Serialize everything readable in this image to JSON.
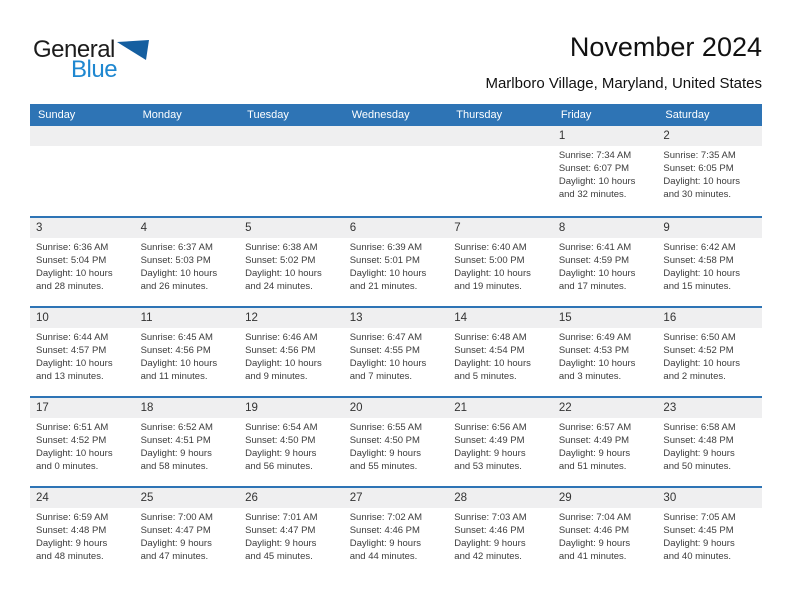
{
  "logo": {
    "line1": "General",
    "line2": "Blue"
  },
  "title": "November 2024",
  "subtitle": "Marlboro Village, Maryland, United States",
  "colors": {
    "header_blue": "#2E74B5",
    "row_border_blue": "#2E74B5",
    "number_band_gray": "#EFEFF0",
    "logo_text_blue": "#1E87D0",
    "logo_triangle_blue": "#155FA0"
  },
  "calendar": {
    "weekdays": [
      "Sunday",
      "Monday",
      "Tuesday",
      "Wednesday",
      "Thursday",
      "Friday",
      "Saturday"
    ],
    "weeks": [
      [
        null,
        null,
        null,
        null,
        null,
        {
          "day": "1",
          "sunrise": "Sunrise: 7:34 AM",
          "sunset": "Sunset: 6:07 PM",
          "daylight1": "Daylight: 10 hours",
          "daylight2": "and 32 minutes."
        },
        {
          "day": "2",
          "sunrise": "Sunrise: 7:35 AM",
          "sunset": "Sunset: 6:05 PM",
          "daylight1": "Daylight: 10 hours",
          "daylight2": "and 30 minutes."
        }
      ],
      [
        {
          "day": "3",
          "sunrise": "Sunrise: 6:36 AM",
          "sunset": "Sunset: 5:04 PM",
          "daylight1": "Daylight: 10 hours",
          "daylight2": "and 28 minutes."
        },
        {
          "day": "4",
          "sunrise": "Sunrise: 6:37 AM",
          "sunset": "Sunset: 5:03 PM",
          "daylight1": "Daylight: 10 hours",
          "daylight2": "and 26 minutes."
        },
        {
          "day": "5",
          "sunrise": "Sunrise: 6:38 AM",
          "sunset": "Sunset: 5:02 PM",
          "daylight1": "Daylight: 10 hours",
          "daylight2": "and 24 minutes."
        },
        {
          "day": "6",
          "sunrise": "Sunrise: 6:39 AM",
          "sunset": "Sunset: 5:01 PM",
          "daylight1": "Daylight: 10 hours",
          "daylight2": "and 21 minutes."
        },
        {
          "day": "7",
          "sunrise": "Sunrise: 6:40 AM",
          "sunset": "Sunset: 5:00 PM",
          "daylight1": "Daylight: 10 hours",
          "daylight2": "and 19 minutes."
        },
        {
          "day": "8",
          "sunrise": "Sunrise: 6:41 AM",
          "sunset": "Sunset: 4:59 PM",
          "daylight1": "Daylight: 10 hours",
          "daylight2": "and 17 minutes."
        },
        {
          "day": "9",
          "sunrise": "Sunrise: 6:42 AM",
          "sunset": "Sunset: 4:58 PM",
          "daylight1": "Daylight: 10 hours",
          "daylight2": "and 15 minutes."
        }
      ],
      [
        {
          "day": "10",
          "sunrise": "Sunrise: 6:44 AM",
          "sunset": "Sunset: 4:57 PM",
          "daylight1": "Daylight: 10 hours",
          "daylight2": "and 13 minutes."
        },
        {
          "day": "11",
          "sunrise": "Sunrise: 6:45 AM",
          "sunset": "Sunset: 4:56 PM",
          "daylight1": "Daylight: 10 hours",
          "daylight2": "and 11 minutes."
        },
        {
          "day": "12",
          "sunrise": "Sunrise: 6:46 AM",
          "sunset": "Sunset: 4:56 PM",
          "daylight1": "Daylight: 10 hours",
          "daylight2": "and 9 minutes."
        },
        {
          "day": "13",
          "sunrise": "Sunrise: 6:47 AM",
          "sunset": "Sunset: 4:55 PM",
          "daylight1": "Daylight: 10 hours",
          "daylight2": "and 7 minutes."
        },
        {
          "day": "14",
          "sunrise": "Sunrise: 6:48 AM",
          "sunset": "Sunset: 4:54 PM",
          "daylight1": "Daylight: 10 hours",
          "daylight2": "and 5 minutes."
        },
        {
          "day": "15",
          "sunrise": "Sunrise: 6:49 AM",
          "sunset": "Sunset: 4:53 PM",
          "daylight1": "Daylight: 10 hours",
          "daylight2": "and 3 minutes."
        },
        {
          "day": "16",
          "sunrise": "Sunrise: 6:50 AM",
          "sunset": "Sunset: 4:52 PM",
          "daylight1": "Daylight: 10 hours",
          "daylight2": "and 2 minutes."
        }
      ],
      [
        {
          "day": "17",
          "sunrise": "Sunrise: 6:51 AM",
          "sunset": "Sunset: 4:52 PM",
          "daylight1": "Daylight: 10 hours",
          "daylight2": "and 0 minutes."
        },
        {
          "day": "18",
          "sunrise": "Sunrise: 6:52 AM",
          "sunset": "Sunset: 4:51 PM",
          "daylight1": "Daylight: 9 hours",
          "daylight2": "and 58 minutes."
        },
        {
          "day": "19",
          "sunrise": "Sunrise: 6:54 AM",
          "sunset": "Sunset: 4:50 PM",
          "daylight1": "Daylight: 9 hours",
          "daylight2": "and 56 minutes."
        },
        {
          "day": "20",
          "sunrise": "Sunrise: 6:55 AM",
          "sunset": "Sunset: 4:50 PM",
          "daylight1": "Daylight: 9 hours",
          "daylight2": "and 55 minutes."
        },
        {
          "day": "21",
          "sunrise": "Sunrise: 6:56 AM",
          "sunset": "Sunset: 4:49 PM",
          "daylight1": "Daylight: 9 hours",
          "daylight2": "and 53 minutes."
        },
        {
          "day": "22",
          "sunrise": "Sunrise: 6:57 AM",
          "sunset": "Sunset: 4:49 PM",
          "daylight1": "Daylight: 9 hours",
          "daylight2": "and 51 minutes."
        },
        {
          "day": "23",
          "sunrise": "Sunrise: 6:58 AM",
          "sunset": "Sunset: 4:48 PM",
          "daylight1": "Daylight: 9 hours",
          "daylight2": "and 50 minutes."
        }
      ],
      [
        {
          "day": "24",
          "sunrise": "Sunrise: 6:59 AM",
          "sunset": "Sunset: 4:48 PM",
          "daylight1": "Daylight: 9 hours",
          "daylight2": "and 48 minutes."
        },
        {
          "day": "25",
          "sunrise": "Sunrise: 7:00 AM",
          "sunset": "Sunset: 4:47 PM",
          "daylight1": "Daylight: 9 hours",
          "daylight2": "and 47 minutes."
        },
        {
          "day": "26",
          "sunrise": "Sunrise: 7:01 AM",
          "sunset": "Sunset: 4:47 PM",
          "daylight1": "Daylight: 9 hours",
          "daylight2": "and 45 minutes."
        },
        {
          "day": "27",
          "sunrise": "Sunrise: 7:02 AM",
          "sunset": "Sunset: 4:46 PM",
          "daylight1": "Daylight: 9 hours",
          "daylight2": "and 44 minutes."
        },
        {
          "day": "28",
          "sunrise": "Sunrise: 7:03 AM",
          "sunset": "Sunset: 4:46 PM",
          "daylight1": "Daylight: 9 hours",
          "daylight2": "and 42 minutes."
        },
        {
          "day": "29",
          "sunrise": "Sunrise: 7:04 AM",
          "sunset": "Sunset: 4:46 PM",
          "daylight1": "Daylight: 9 hours",
          "daylight2": "and 41 minutes."
        },
        {
          "day": "30",
          "sunrise": "Sunrise: 7:05 AM",
          "sunset": "Sunset: 4:45 PM",
          "daylight1": "Daylight: 9 hours",
          "daylight2": "and 40 minutes."
        }
      ]
    ]
  }
}
